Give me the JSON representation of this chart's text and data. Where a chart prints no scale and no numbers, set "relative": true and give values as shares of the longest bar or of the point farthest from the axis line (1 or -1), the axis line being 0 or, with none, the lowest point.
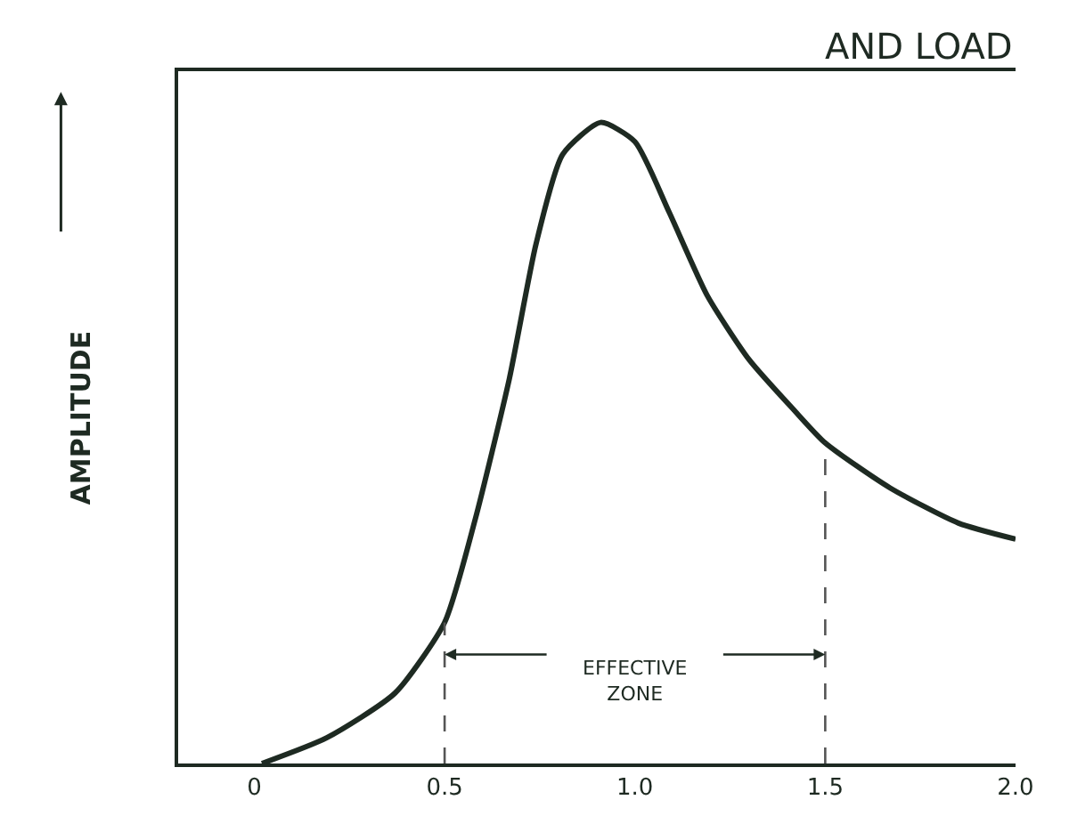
{
  "chart_data": {
    "type": "line",
    "title": "AND LOAD",
    "ylabel": "AMPLITUDE",
    "relative": true,
    "x": [
      0.02,
      0.19,
      0.37,
      0.5,
      0.58,
      0.67,
      0.74,
      0.81,
      0.91,
      1.0,
      1.09,
      1.19,
      1.3,
      1.42,
      1.5,
      1.67,
      1.85,
      2.0
    ],
    "series": [
      {
        "color": "#1e2a22",
        "values": [
          0,
          0.04,
          0.11,
          0.22,
          0.38,
          0.6,
          0.81,
          0.95,
          1.0,
          0.97,
          0.86,
          0.73,
          0.63,
          0.55,
          0.5,
          0.43,
          0.375,
          0.35
        ]
      }
    ],
    "xlim": [
      -0.2,
      2.0
    ],
    "xticks": [
      0,
      0.5,
      {
        "value": 1.0,
        "label": "1.0"
      },
      1.5,
      {
        "value": 2.0,
        "label": "2.0"
      }
    ],
    "ref_lines": [
      {
        "axis": "x",
        "value": 0.5,
        "line_style": "dashed",
        "color": "#555555"
      },
      {
        "axis": "x",
        "value": 1.5,
        "line_style": "dashed",
        "color": "#555555"
      }
    ],
    "annotations": [
      "EFFECTIVE\nZONE"
    ],
    "marker": "none",
    "line_style": "solid"
  }
}
